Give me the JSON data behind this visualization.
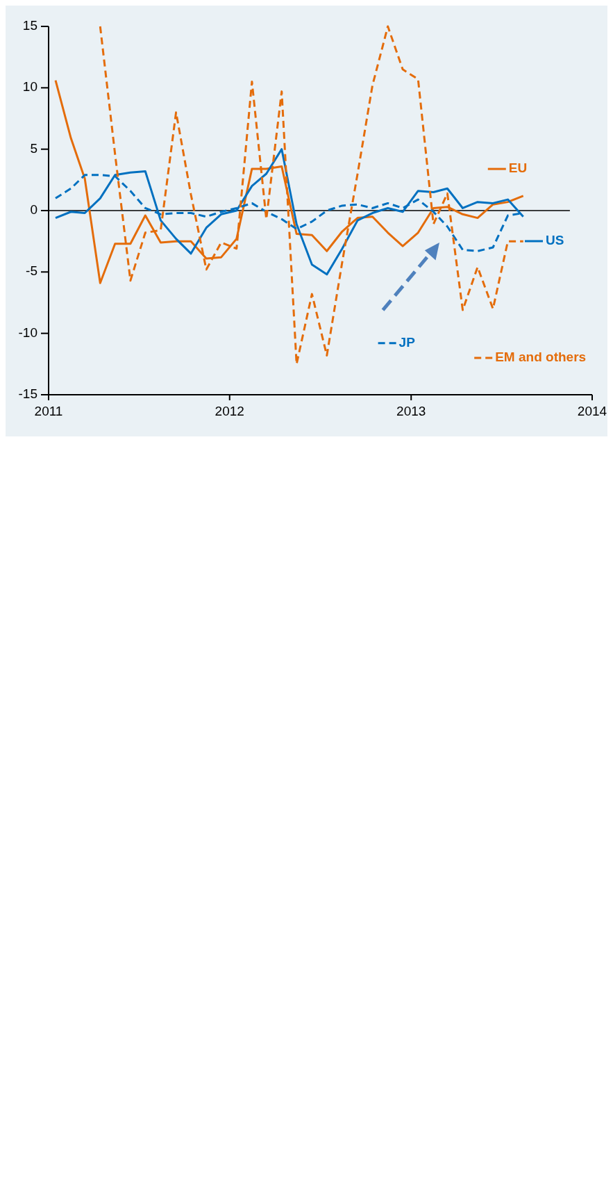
{
  "chart_data": {
    "type": "line",
    "x": [
      "2011-01-15",
      "2011-02-15",
      "2011-03-15",
      "2011-04-15",
      "2011-05-15",
      "2011-06-15",
      "2011-07-15",
      "2011-08-15",
      "2011-09-15",
      "2011-10-15",
      "2011-11-15",
      "2011-12-15",
      "2012-01-15",
      "2012-02-15",
      "2012-03-15",
      "2012-04-15",
      "2012-05-15",
      "2012-06-15",
      "2012-07-15",
      "2012-08-15",
      "2012-09-15",
      "2012-10-15",
      "2012-11-15",
      "2012-12-15",
      "2013-01-15",
      "2013-02-15",
      "2013-03-15",
      "2013-04-15",
      "2013-05-15",
      "2013-06-15",
      "2013-07-15",
      "2013-08-15"
    ],
    "series": [
      {
        "name": "EU",
        "color": "#e46c0a",
        "line_style": "solid",
        "values": [
          10.6,
          5.9,
          2.6,
          -5.9,
          -2.7,
          -2.7,
          -0.4,
          -2.6,
          -2.5,
          -2.5,
          -3.9,
          -3.8,
          -2.3,
          3.4,
          3.4,
          3.6,
          -1.9,
          -2.0,
          -3.3,
          -1.7,
          -0.6,
          -0.5,
          -1.8,
          -2.9,
          -1.8,
          0.2,
          0.3,
          -0.3,
          -0.6,
          0.5,
          0.7,
          1.2
        ]
      },
      {
        "name": "US",
        "color": "#0070c0",
        "line_style": "solid",
        "values": [
          -0.6,
          -0.1,
          -0.2,
          1.0,
          2.9,
          3.1,
          3.2,
          -0.8,
          -2.3,
          -3.5,
          -1.4,
          -0.3,
          0.0,
          2.0,
          3.0,
          5.0,
          -1.1,
          -4.4,
          -5.2,
          -3.1,
          -0.8,
          -0.2,
          0.2,
          -0.1,
          1.6,
          1.5,
          1.8,
          0.2,
          0.7,
          0.6,
          0.9,
          -0.5
        ]
      },
      {
        "name": "JP",
        "color": "#0070c0",
        "line_style": "dashed",
        "values": [
          1.0,
          1.8,
          2.9,
          2.9,
          2.8,
          1.6,
          0.2,
          -0.3,
          -0.2,
          -0.2,
          -0.5,
          -0.1,
          0.2,
          0.6,
          -0.1,
          -0.7,
          -1.5,
          -0.9,
          0.0,
          0.4,
          0.5,
          0.2,
          0.6,
          0.2,
          0.9,
          -0.1,
          -1.3,
          -3.2,
          -3.3,
          -3.0,
          -0.4,
          -0.2
        ]
      },
      {
        "name": "EM and others",
        "color": "#e46c0a",
        "line_style": "dashed",
        "values": [
          null,
          null,
          null,
          15,
          4.6,
          -5.7,
          -1.8,
          -1.6,
          8.0,
          1.3,
          -4.8,
          -2.6,
          -3.1,
          10.5,
          -0.7,
          9.7,
          -12.5,
          -6.8,
          -11.8,
          -4.2,
          3.0,
          10.2,
          15,
          11.5,
          10.7,
          -1.1,
          1.4,
          -8.1,
          -4.6,
          -8.0,
          -2.5,
          -2.5
        ]
      }
    ],
    "xlim": [
      "2011",
      "2014"
    ],
    "xticks": [
      "2011",
      "2012",
      "2013",
      "2014"
    ],
    "ylim": [
      -15,
      15
    ],
    "yticks": [
      -15,
      -10,
      -5,
      0,
      5,
      10,
      15
    ],
    "ref_lines": [
      {
        "axis": "y",
        "value": 0,
        "color": "#000000"
      }
    ],
    "grid": false,
    "legend": "right"
  }
}
